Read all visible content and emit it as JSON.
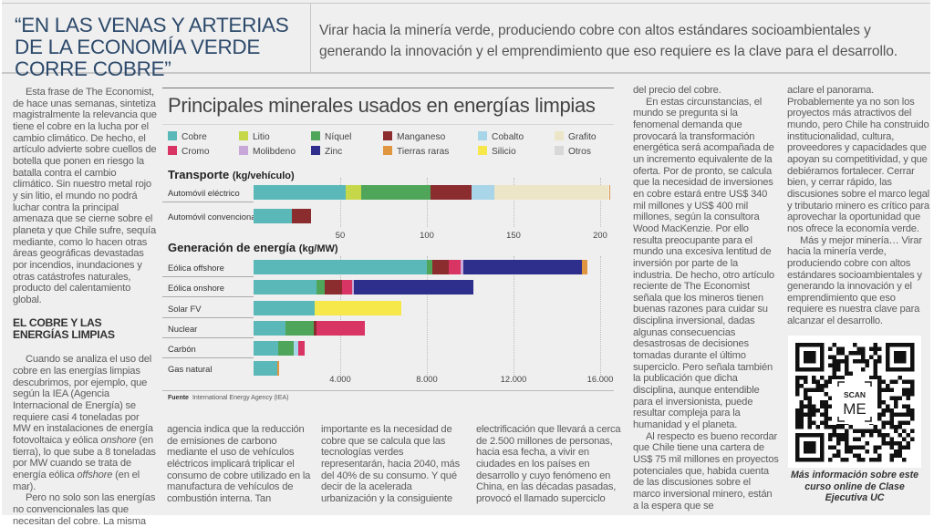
{
  "header": {
    "quote": "“EN LAS VENAS Y ARTERIAS DE LA ECONOMÍA VERDE CORRE COBRE”",
    "subtitle": "Virar hacia la minería verde, produciendo cobre con altos estándares socioambientales y generando la innovación y el emprendimiento que eso requiere es la clave para el desarrollo."
  },
  "column1": {
    "p1": "Esta frase de The Economist, de hace unas semanas, sintetiza magistralmente la relevancia que tiene el cobre en la lucha por el cambio climático. De hecho, el artículo advierte sobre cuellos de botella que ponen en riesgo la batalla contra el cambio climático. Sin nuestro metal rojo y sin litio, el mundo no podrá luchar contra la principal amenaza que se cierne sobre el planeta y que Chile sufre, sequía mediante, como lo hacen otras áreas geográficas devastadas por incendios, inundaciones y otras catástrofes naturales, producto del calentamiento global.",
    "heading": "EL COBRE Y LAS ENERGÍAS LIMPIAS",
    "p2a": "Cuando se analiza el uso del cobre en las energías limpias descubrimos, por ejemplo, que según la IEA (Agencia Internacional de Energía) se requiere casi 4 toneladas por MW en instalaciones de energía fotovoltaica y eólica ",
    "p2b": "onshore",
    "p2c": " (en tierra), lo que sube a 8 toneladas por MW cuando se trata de energía eólica ",
    "p2d": "offshore",
    "p2e": " (en el mar).",
    "p3": "Pero no solo son las energías no convencionales las que necesitan del cobre. La misma"
  },
  "column2": {
    "text": "agencia indica que la reducción de emisiones de carbono mediante el uso de vehículos eléctricos implicará triplicar el consumo de cobre utilizado en la manufactura de vehículos de combustión interna. Tan"
  },
  "column3": {
    "text": "importante es la necesidad de cobre que se calcula que las tecnologías verdes representarán, hacia 2040, más del 40% de su consumo. Y qué decir de la acelerada urbanización y la consiguiente"
  },
  "column4": {
    "text": "electrificación que llevará a cerca de 2.500 millones de personas, hacia esa fecha, a vivir en ciudades en los países en desarrollo y cuyo fenómeno en China, en las décadas pasadas, provocó el llamado superciclo"
  },
  "column5": {
    "p1": "del precio del cobre.",
    "p2": "En estas circunstancias, el mundo se pregunta si la fenomenal demanda que provocará la transformación energética será acompañada de un incremento equivalente de la oferta. Por de pronto, se calcula que la necesidad de inversiones en cobre estará entre US$ 340 mil millones y US$ 400 mil millones, según la consultora Wood MacKenzie. Por ello resulta preocupante para el mundo una excesiva lentitud de inversión por parte de la industria. De hecho, otro artículo reciente de The Economist señala que los mineros tienen buenas razones para cuidar su disciplina inversional, dadas algunas consecuencias desastrosas de decisiones tomadas durante el último superciclo. Pero señala también la publicación que dicha disciplina, aunque entendible para el inversionista, puede resultar compleja para la humanidad y el planeta.",
    "p3": "Al respecto es bueno recordar que Chile tiene una cartera de US$ 75 mil millones en proyectos potenciales que, habida cuenta de las discusiones sobre el marco inversional minero, están a la espera que se"
  },
  "column6": {
    "p1": "aclare el panorama. Probablemente ya no son los proyectos más atractivos del mundo, pero Chile ha construido institucionalidad, cultura, proveedores y capacidades que apoyan su competitividad, y que debiéramos fortalecer. Cerrar bien, y cerrar rápido, las discusiones sobre el marco legal y tributario minero es crítico para aprovechar la oportunidad que nos ofrece la economía verde.",
    "p2": "Más y mejor minería… Virar hacia la minería verde, produciendo cobre con altos estándares socioambientales y generando la innovación y el emprendimiento que eso requiere es nuestra clave para alcanzar el desarrollo."
  },
  "qr": {
    "icon": "qr-code-icon",
    "scan_label_top": "SCAN",
    "scan_label_bottom": "ME",
    "caption": "Más información sobre este curso online de Clase Ejecutiva UC"
  },
  "chart_data": [
    {
      "type": "bar",
      "orientation": "horizontal-stacked",
      "title": "Principales minerales usados en energías limpias",
      "subtitle": "Transporte",
      "unit": "(kg/vehículo)",
      "categories": [
        "Automóvil eléctrico",
        "Automóvil convencional"
      ],
      "xlim": [
        0,
        207
      ],
      "xticks": [
        50,
        100,
        150,
        200
      ],
      "xtick_labels": [
        "50",
        "100",
        "150",
        "200"
      ],
      "grid": true,
      "series": [
        {
          "name": "Cobre",
          "color": "#5bb8b8",
          "values": [
            53,
            22
          ]
        },
        {
          "name": "Litio",
          "color": "#c6d84a",
          "values": [
            9,
            0
          ]
        },
        {
          "name": "Níquel",
          "color": "#4fa65a",
          "values": [
            40,
            0
          ]
        },
        {
          "name": "Manganeso",
          "color": "#8b2c2e",
          "values": [
            24,
            11
          ]
        },
        {
          "name": "Cobalto",
          "color": "#a9d5e8",
          "values": [
            13,
            0
          ]
        },
        {
          "name": "Grafito",
          "color": "#ece5c8",
          "values": [
            66,
            0
          ]
        },
        {
          "name": "Tierras raras",
          "color": "#e09540",
          "values": [
            0.5,
            0
          ]
        }
      ]
    },
    {
      "type": "bar",
      "orientation": "horizontal-stacked",
      "subtitle": "Generación de energía",
      "unit": "(kg/MW)",
      "categories": [
        "Eólica offshore",
        "Eólica onshore",
        "Solar FV",
        "Nuclear",
        "Carbón",
        "Gas natural"
      ],
      "xlim": [
        0,
        16000
      ],
      "xticks": [
        4000,
        8000,
        12000,
        16000
      ],
      "xtick_labels": [
        "4.000",
        "8.000",
        "12.000",
        "16.000"
      ],
      "grid": true,
      "series": [
        {
          "name": "Cobre",
          "color": "#5bb8b8",
          "values": [
            8000,
            2900,
            2820,
            1470,
            1150,
            1100
          ]
        },
        {
          "name": "Níquel",
          "color": "#4fa65a",
          "values": [
            240,
            400,
            0,
            1300,
            700,
            0
          ]
        },
        {
          "name": "Manganeso",
          "color": "#8b2c2e",
          "values": [
            790,
            780,
            0,
            150,
            0,
            0
          ]
        },
        {
          "name": "Cobalto",
          "color": "#a9d5e8",
          "values": [
            0,
            0,
            0,
            0,
            200,
            0
          ]
        },
        {
          "name": "Cromo",
          "color": "#d83464",
          "values": [
            525,
            470,
            0,
            2200,
            310,
            0
          ]
        },
        {
          "name": "Molibdeno",
          "color": "#c8a8d8",
          "values": [
            110,
            100,
            0,
            0,
            0,
            0
          ]
        },
        {
          "name": "Zinc",
          "color": "#2e2e8c",
          "values": [
            5500,
            5500,
            0,
            0,
            0,
            0
          ]
        },
        {
          "name": "Silicio",
          "color": "#f6e84a",
          "values": [
            0,
            0,
            4000,
            0,
            0,
            0
          ]
        },
        {
          "name": "Tierras raras",
          "color": "#e09540",
          "values": [
            240,
            0,
            0,
            0,
            0,
            80
          ]
        }
      ],
      "source_label": "Fuente",
      "source": "International Energy Agency (IEA)"
    }
  ],
  "legend": [
    {
      "name": "Cobre",
      "color": "#5bb8b8"
    },
    {
      "name": "Litio",
      "color": "#c6d84a"
    },
    {
      "name": "Níquel",
      "color": "#4fa65a"
    },
    {
      "name": "Manganeso",
      "color": "#8b2c2e"
    },
    {
      "name": "Cobalto",
      "color": "#a9d5e8"
    },
    {
      "name": "Grafito",
      "color": "#ece5c8"
    },
    {
      "name": "Cromo",
      "color": "#d83464"
    },
    {
      "name": "Molibdeno",
      "color": "#c8a8d8"
    },
    {
      "name": "Zinc",
      "color": "#2e2e8c"
    },
    {
      "name": "Tierras raras",
      "color": "#e09540"
    },
    {
      "name": "Silicio",
      "color": "#f6e84a"
    },
    {
      "name": "Otros",
      "color": "#d8d8d8"
    }
  ]
}
